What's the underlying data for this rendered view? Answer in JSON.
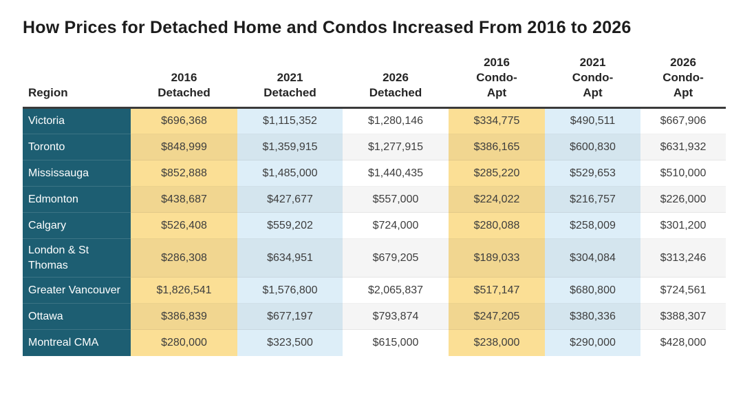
{
  "title": "How Prices for Detached Home and Condos Increased From 2016 to 2026",
  "table": {
    "headers": [
      "Region",
      "2016\nDetached",
      "2021\nDetached",
      "2026\nDetached",
      "2016\nCondo-\nApt",
      "2021\nCondo-\nApt",
      "2026\nCondo-\nApt"
    ],
    "rows": [
      {
        "region": "Victoria",
        "values": [
          "$696,368",
          "$1,115,352",
          "$1,280,146",
          "$334,775",
          "$490,511",
          "$667,906"
        ]
      },
      {
        "region": "Toronto",
        "values": [
          "$848,999",
          "$1,359,915",
          "$1,277,915",
          "$386,165",
          "$600,830",
          "$631,932"
        ]
      },
      {
        "region": "Mississauga",
        "values": [
          "$852,888",
          "$1,485,000",
          "$1,440,435",
          "$285,220",
          "$529,653",
          "$510,000"
        ]
      },
      {
        "region": "Edmonton",
        "values": [
          "$438,687",
          "$427,677",
          "$557,000",
          "$224,022",
          "$216,757",
          "$226,000"
        ]
      },
      {
        "region": "Calgary",
        "values": [
          "$526,408",
          "$559,202",
          "$724,000",
          "$280,088",
          "$258,009",
          "$301,200"
        ]
      },
      {
        "region": "London & St Thomas",
        "values": [
          "$286,308",
          "$634,951",
          "$679,205",
          "$189,033",
          "$304,084",
          "$313,246"
        ]
      },
      {
        "region": "Greater Vancouver",
        "values": [
          "$1,826,541",
          "$1,576,800",
          "$2,065,837",
          "$517,147",
          "$680,800",
          "$724,561"
        ]
      },
      {
        "region": "Ottawa",
        "values": [
          "$386,839",
          "$677,197",
          "$793,874",
          "$247,205",
          "$380,336",
          "$388,307"
        ]
      },
      {
        "region": "Montreal CMA",
        "values": [
          "$280,000",
          "$323,500",
          "$615,000",
          "$238,000",
          "$290,000",
          "$428,000"
        ]
      }
    ]
  },
  "colors": {
    "region_column_bg": "#1d5e72",
    "detached_2016_column_bg": "#fbdf95",
    "detached_2021_column_bg": "#ddeef8",
    "detached_2026_column_bg": "#ffffff",
    "condo_2016_column_bg": "#fbdf95",
    "condo_2021_column_bg": "#ddeef8",
    "condo_2026_column_bg": "#ffffff",
    "header_rule": "#3a3a3a",
    "region_text": "#ffffff",
    "value_text": "#3d3d3d",
    "title_text": "#1c1c1c"
  },
  "chart_data": {
    "type": "table",
    "title": "How Prices for Detached Home and Condos Increased From 2016 to 2026",
    "columns": [
      "Region",
      "2016 Detached",
      "2021 Detached",
      "2026 Detached",
      "2016 Condo-Apt",
      "2021 Condo-Apt",
      "2026 Condo-Apt"
    ],
    "rows": [
      [
        "Victoria",
        696368,
        1115352,
        1280146,
        334775,
        490511,
        667906
      ],
      [
        "Toronto",
        848999,
        1359915,
        1277915,
        386165,
        600830,
        631932
      ],
      [
        "Mississauga",
        852888,
        1485000,
        1440435,
        285220,
        529653,
        510000
      ],
      [
        "Edmonton",
        438687,
        427677,
        557000,
        224022,
        216757,
        226000
      ],
      [
        "Calgary",
        526408,
        559202,
        724000,
        280088,
        258009,
        301200
      ],
      [
        "London & St Thomas",
        286308,
        634951,
        679205,
        189033,
        304084,
        313246
      ],
      [
        "Greater Vancouver",
        1826541,
        1576800,
        2065837,
        517147,
        680800,
        724561
      ],
      [
        "Ottawa",
        386839,
        677197,
        793874,
        247205,
        380336,
        388307
      ],
      [
        "Montreal CMA",
        280000,
        323500,
        615000,
        238000,
        290000,
        428000
      ]
    ],
    "units": "CAD",
    "notes": "Prices shown with $ and thousands separators in the rendered table"
  }
}
